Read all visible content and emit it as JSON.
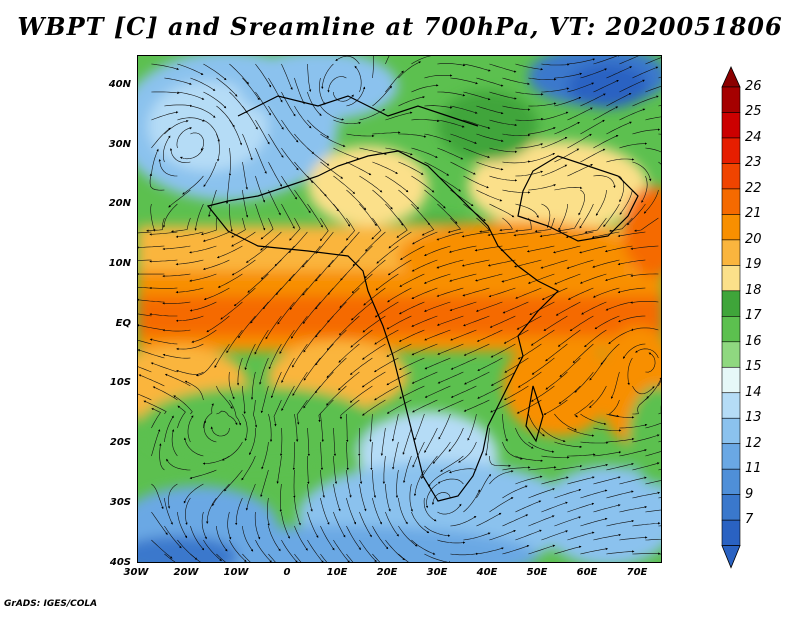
{
  "title": "WBPT [C] and Sreamline at 700hPa, VT: 2020051806",
  "credit": "GrADS: IGES/COLA",
  "map": {
    "latitude_labels": [
      "40N",
      "30N",
      "20N",
      "10N",
      "EQ",
      "10S",
      "20S",
      "30S",
      "40S"
    ],
    "longitude_labels": [
      "30W",
      "20W",
      "10W",
      "0",
      "10E",
      "20E",
      "30E",
      "40E",
      "50E",
      "60E",
      "70E"
    ]
  },
  "colorbar": {
    "labels": [
      "26",
      "25",
      "24",
      "23",
      "22",
      "21",
      "20",
      "19",
      "18",
      "17",
      "16",
      "15",
      "14",
      "13",
      "12",
      "11",
      "9",
      "7"
    ],
    "colors": [
      "#a50000",
      "#cc0000",
      "#e61e00",
      "#f04400",
      "#f56a00",
      "#f88f00",
      "#fab53e",
      "#fbe08a",
      "#3fa53a",
      "#5cc04f",
      "#8fd880",
      "#e6f8f8",
      "#b5dcf6",
      "#8bc2ee",
      "#6aa8e4",
      "#4f8fd8",
      "#3a78cc",
      "#2a62c2"
    ],
    "top_arrow_color": "#8b0000",
    "bottom_arrow_color": "#2a62c2"
  }
}
